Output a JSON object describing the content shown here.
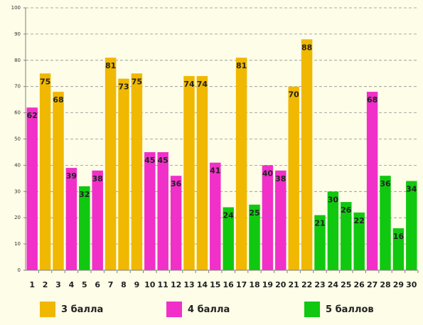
{
  "chart_data": {
    "type": "bar",
    "categories": [
      "1",
      "2",
      "3",
      "4",
      "5",
      "6",
      "7",
      "8",
      "9",
      "10",
      "11",
      "12",
      "13",
      "14",
      "15",
      "16",
      "17",
      "18",
      "19",
      "20",
      "21",
      "22",
      "23",
      "24",
      "25",
      "26",
      "27",
      "28",
      "29",
      "30"
    ],
    "values": [
      62,
      75,
      68,
      39,
      32,
      38,
      81,
      73,
      75,
      45,
      45,
      36,
      74,
      74,
      41,
      24,
      81,
      25,
      40,
      38,
      70,
      88,
      21,
      30,
      26,
      22,
      68,
      36,
      16,
      34
    ],
    "bar_group": [
      "4 балла",
      "3 балла",
      "3 балла",
      "4 балла",
      "5 баллов",
      "4 балла",
      "3 балла",
      "3 балла",
      "3 балла",
      "4 балла",
      "4 балла",
      "4 балла",
      "3 балла",
      "3 балла",
      "4 балла",
      "5 баллов",
      "3 балла",
      "5 баллов",
      "4 балла",
      "4 балла",
      "3 балла",
      "3 балла",
      "5 баллов",
      "5 баллов",
      "5 баллов",
      "5 баллов",
      "4 балла",
      "5 баллов",
      "5 баллов",
      "5 баллов"
    ],
    "ylim": [
      0,
      100
    ],
    "yticks": [
      0,
      10,
      20,
      30,
      40,
      50,
      60,
      70,
      80,
      90,
      100
    ],
    "grid": true,
    "legend_position": "bottom",
    "legend": [
      {
        "name": "3 балла",
        "color": "#f0b800"
      },
      {
        "name": "4 балла",
        "color": "#f030c8"
      },
      {
        "name": "5 баллов",
        "color": "#10c810"
      }
    ]
  }
}
